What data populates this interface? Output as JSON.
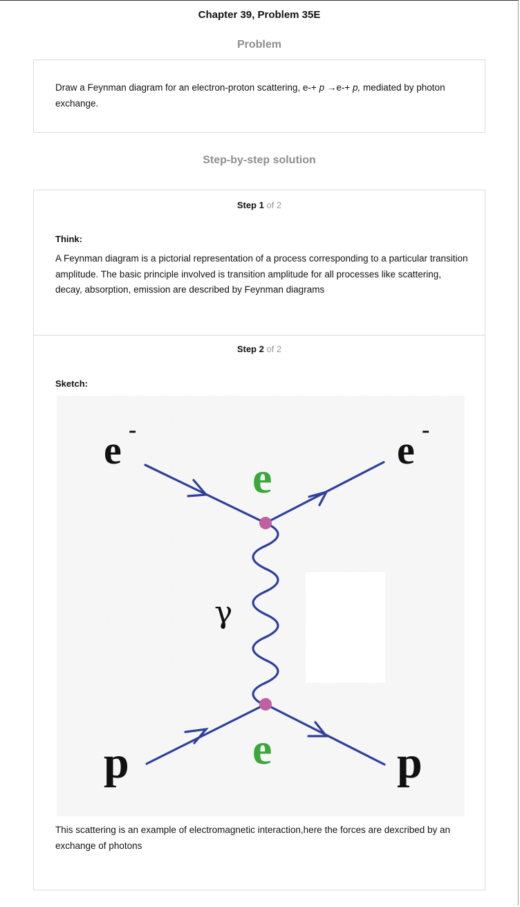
{
  "header": {
    "title": "Chapter 39, Problem 35E"
  },
  "problem": {
    "heading": "Problem",
    "text_before": "Draw a Feynman diagram for an electron-proton scattering, e-+ ",
    "p1": "p",
    "text_mid": " →e-+  ",
    "p2": "p,",
    "text_after": " mediated by photon exchange."
  },
  "solution": {
    "heading": "Step-by-step solution",
    "steps": [
      {
        "step_word": "Step 1",
        "of_total": "of 2",
        "label": "Think:",
        "text": "A Feynman diagram is a pictorial representation of a process corresponding to a particular transition amplitude. The basic principle involved is transition amplitude for all processes like scattering, decay, absorption, emission are described by Feynman diagrams"
      },
      {
        "step_word": "Step 2",
        "of_total": "of 2",
        "label": "Sketch:",
        "text": "This scattering is an example of electromagnetic interaction,here the forces are dexcribed by an exchange of photons"
      }
    ]
  },
  "diagram": {
    "labels": {
      "electron_in": "e",
      "electron_in_sup": "-",
      "electron_out": "e",
      "electron_out_sup": "-",
      "vertex_top": "e",
      "photon": "γ",
      "vertex_bottom": "e",
      "proton_in": "p",
      "proton_out": "p"
    },
    "colors": {
      "line": "#2e3f9c",
      "vertex": "#c060a0",
      "charge_label": "#3aa83a",
      "particle_label": "#111111"
    }
  }
}
